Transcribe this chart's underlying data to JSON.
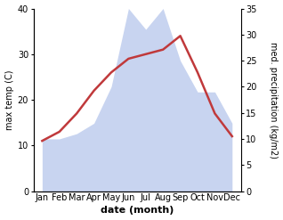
{
  "months": [
    "Jan",
    "Feb",
    "Mar",
    "Apr",
    "May",
    "Jun",
    "Jul",
    "Aug",
    "Sep",
    "Oct",
    "Nov",
    "Dec"
  ],
  "month_positions": [
    1,
    2,
    3,
    4,
    5,
    6,
    7,
    8,
    9,
    10,
    11,
    12
  ],
  "temperature": [
    11,
    13,
    17,
    22,
    26,
    29,
    30,
    31,
    34,
    26,
    17,
    12
  ],
  "precipitation": [
    10,
    10,
    11,
    13,
    20,
    35,
    31,
    35,
    25,
    19,
    19,
    13
  ],
  "temp_color": "#c0393b",
  "precip_color_fill": "#c8d4f0",
  "temp_ylim": [
    0,
    40
  ],
  "precip_ylim": [
    0,
    35
  ],
  "temp_yticks": [
    0,
    10,
    20,
    30,
    40
  ],
  "precip_yticks": [
    0,
    5,
    10,
    15,
    20,
    25,
    30,
    35
  ],
  "ylabel_left": "max temp (C)",
  "ylabel_right": "med. precipitation (kg/m2)",
  "xlabel": "date (month)",
  "bg_color": "#ffffff",
  "axis_fontsize": 7,
  "tick_fontsize": 7,
  "line_width": 1.8
}
